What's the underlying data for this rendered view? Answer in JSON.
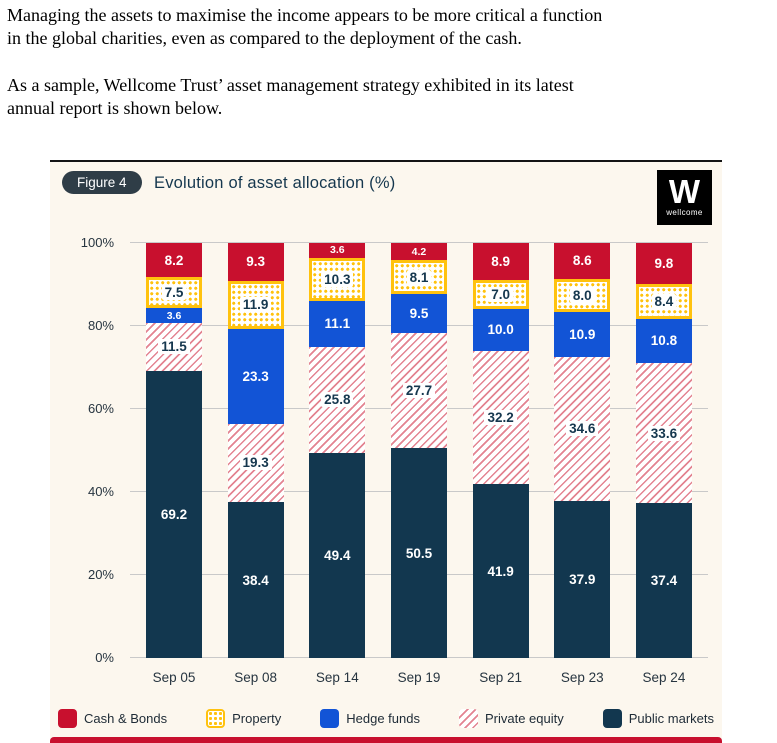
{
  "intro": {
    "paragraph1": "Managing the assets to maximise the income appears to be more critical a function\nin the global charities, even as compared to the deployment of the cash.",
    "paragraph2": "As a sample, Wellcome Trust’ asset management strategy exhibited in its latest\nannual report is shown below."
  },
  "figure": {
    "label": "Figure 4",
    "title": "Evolution of asset allocation (%)",
    "logo": {
      "letter": "W",
      "word": "wellcome"
    }
  },
  "chart_data": {
    "type": "bar",
    "subtype": "stacked-100-percent",
    "title": "Evolution of asset allocation (%)",
    "categories": [
      "Sep 05",
      "Sep 08",
      "Sep 14",
      "Sep 19",
      "Sep 21",
      "Sep 23",
      "Sep 24"
    ],
    "series": [
      {
        "name": "Public markets",
        "key": "public-markets",
        "values": [
          "69.2",
          "38.4",
          "49.4",
          "50.5",
          "41.9",
          "37.9",
          "37.4"
        ]
      },
      {
        "name": "Private equity",
        "key": "private-equity",
        "values": [
          "11.5",
          "19.3",
          "25.8",
          "27.7",
          "32.2",
          "34.6",
          "33.6"
        ]
      },
      {
        "name": "Hedge funds",
        "key": "hedge-funds",
        "values": [
          "3.6",
          "23.3",
          "11.1",
          "9.5",
          "10.0",
          "10.9",
          "10.8"
        ]
      },
      {
        "name": "Property",
        "key": "property",
        "values": [
          "7.5",
          "11.9",
          "10.3",
          "8.1",
          "7.0",
          "8.0",
          "8.4"
        ]
      },
      {
        "name": "Cash & Bonds",
        "key": "cash-bonds",
        "values": [
          "8.2",
          "9.3",
          "3.6",
          "4.2",
          "8.9",
          "8.6",
          "9.8"
        ]
      }
    ],
    "yticks": [
      "0%",
      "20%",
      "40%",
      "60%",
      "80%",
      "100%"
    ],
    "ylim": [
      0,
      100
    ],
    "grid": true,
    "legend_position": "bottom",
    "legend": [
      {
        "label": "Cash & Bonds",
        "key": "cash-bonds"
      },
      {
        "label": "Property",
        "key": "property"
      },
      {
        "label": "Hedge funds",
        "key": "hedge-funds"
      },
      {
        "label": "Private equity",
        "key": "private-equity"
      },
      {
        "label": "Public markets",
        "key": "public-markets"
      }
    ],
    "colors": {
      "cash-bonds": "#c8102e",
      "property": "#ffc20e",
      "hedge-funds": "#1254d6",
      "private-equity-hatch": "#cc1e37",
      "public-markets": "#12374f",
      "background": "#fcf7ee",
      "text": "#15374e"
    }
  }
}
